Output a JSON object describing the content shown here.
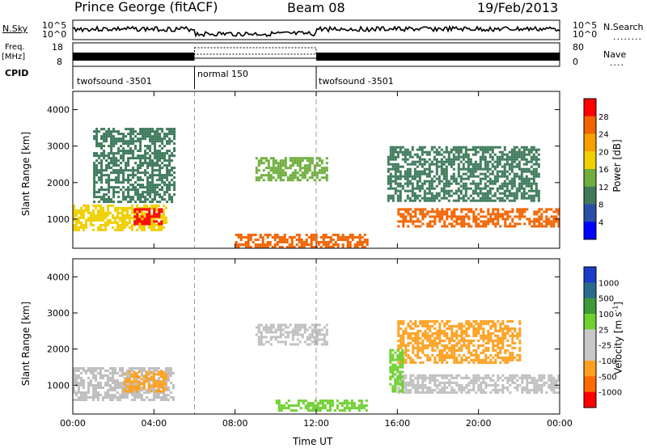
{
  "header": {
    "station": "Prince George (fitACF)",
    "beam": "Beam 08",
    "date": "19/Feb/2013"
  },
  "left_labels": {
    "nsky": "N.Sky",
    "freq": "Freq.",
    "freq_unit": "[MHz]",
    "cpid": "CPID"
  },
  "right_labels": {
    "nsearch": "N.Search",
    "nave": "Nave"
  },
  "noise_panel": {
    "left_ticks": [
      "10^5",
      "10^0"
    ],
    "right_ticks": [
      "10^5",
      "10^0"
    ]
  },
  "freq_panel": {
    "left_ticks": [
      "18",
      "8"
    ],
    "right_ticks": [
      "80",
      "0"
    ]
  },
  "cpid_segments": [
    {
      "label": "twofsound -3501",
      "start_hr": 0,
      "end_hr": 6
    },
    {
      "label": "normal 150",
      "start_hr": 6,
      "end_hr": 12
    },
    {
      "label": "twofsound -3501",
      "start_hr": 12,
      "end_hr": 24
    }
  ],
  "colors": {
    "power_scale": [
      "#0000ff",
      "#2a4ea8",
      "#3e7a5a",
      "#6fae3e",
      "#f0d000",
      "#f7a000",
      "#f26400",
      "#ff0000"
    ],
    "velocity_scale": [
      "#1a3cc8",
      "#2a6a8c",
      "#3d9a3a",
      "#6fd030",
      "#c8c8c8",
      "#c8c8c8",
      "#ffa020",
      "#ff6a00",
      "#ff0000"
    ],
    "ground_scatter": "#c0c0c0"
  },
  "chart_data": [
    {
      "type": "heatmap",
      "title": "",
      "ylabel": "Slant Range [km]",
      "xlabel": "",
      "ylim": [
        200,
        4500
      ],
      "xlim": [
        0,
        24
      ],
      "y_ticks": [
        "1000",
        "2000",
        "3000",
        "4000"
      ],
      "x_ticks": [],
      "colorbar": {
        "label": "Power [dB]",
        "ticks": [
          "28",
          "24",
          "20",
          "16",
          "12",
          "8",
          "4"
        ],
        "range": [
          0,
          30
        ]
      },
      "scatter_regions": [
        {
          "hour_start": 0.0,
          "hour_end": 4.6,
          "range_lo": 700,
          "range_hi": 1400,
          "value": 18
        },
        {
          "hour_start": 3.0,
          "hour_end": 4.4,
          "range_lo": 900,
          "range_hi": 1300,
          "value": 27
        },
        {
          "hour_start": 1.0,
          "hour_end": 5.0,
          "range_lo": 1500,
          "range_hi": 3500,
          "value": 10
        },
        {
          "hour_start": 9.0,
          "hour_end": 12.5,
          "range_lo": 2100,
          "range_hi": 2700,
          "value": 14
        },
        {
          "hour_start": 8.0,
          "hour_end": 14.5,
          "range_lo": 250,
          "range_hi": 600,
          "value": 24
        },
        {
          "hour_start": 16.0,
          "hour_end": 24.0,
          "range_lo": 800,
          "range_hi": 1300,
          "value": 26
        },
        {
          "hour_start": 15.5,
          "hour_end": 23.0,
          "range_lo": 1500,
          "range_hi": 3000,
          "value": 10
        }
      ]
    },
    {
      "type": "heatmap",
      "title": "",
      "ylabel": "Slant Range [km]",
      "xlabel": "Time UT",
      "ylim": [
        200,
        4500
      ],
      "xlim": [
        0,
        24
      ],
      "y_ticks": [
        "1000",
        "2000",
        "3000",
        "4000"
      ],
      "x_ticks": [
        "00:00",
        "04:00",
        "08:00",
        "12:00",
        "16:00",
        "20:00",
        "00:00"
      ],
      "colorbar": {
        "label": "Velocity [m s^-1]",
        "ticks": [
          "1000",
          "500",
          "100",
          "25",
          "-25",
          "-100",
          "-500",
          "-1000"
        ],
        "range": [
          -1000,
          1000
        ]
      },
      "scatter_regions": [
        {
          "hour_start": 0.0,
          "hour_end": 5.0,
          "range_lo": 600,
          "range_hi": 1500,
          "value": 0,
          "ground_scatter": true
        },
        {
          "hour_start": 2.5,
          "hour_end": 4.6,
          "range_lo": 800,
          "range_hi": 1400,
          "value": -300
        },
        {
          "hour_start": 9.0,
          "hour_end": 12.5,
          "range_lo": 2100,
          "range_hi": 2700,
          "value": 0,
          "ground_scatter": true
        },
        {
          "hour_start": 10.0,
          "hour_end": 14.5,
          "range_lo": 300,
          "range_hi": 600,
          "value": 60
        },
        {
          "hour_start": 16.0,
          "hour_end": 24.0,
          "range_lo": 800,
          "range_hi": 1300,
          "value": 0,
          "ground_scatter": true
        },
        {
          "hour_start": 16.0,
          "hour_end": 22.0,
          "range_lo": 1600,
          "range_hi": 2800,
          "value": -400
        },
        {
          "hour_start": 15.6,
          "hour_end": 16.2,
          "range_lo": 800,
          "range_hi": 2000,
          "value": 80
        }
      ]
    }
  ]
}
